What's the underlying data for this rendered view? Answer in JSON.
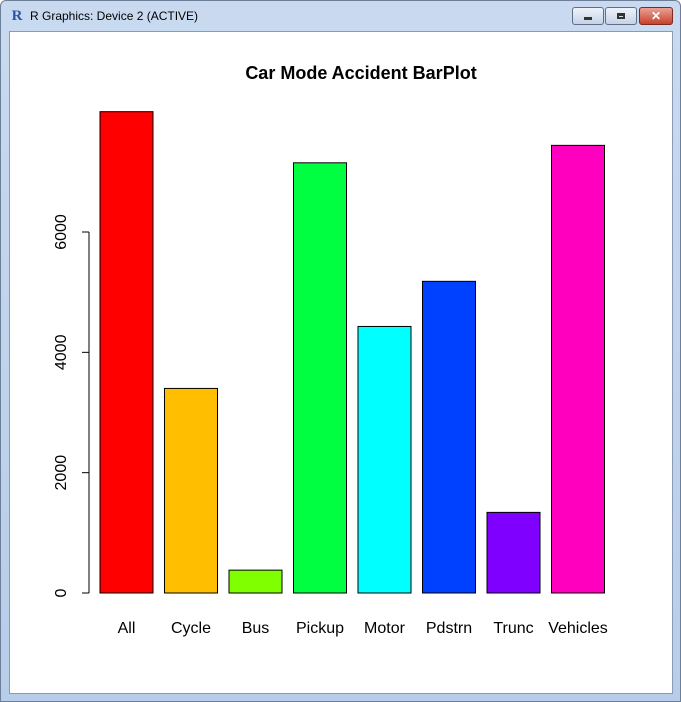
{
  "window": {
    "title": "R Graphics: Device 2 (ACTIVE)",
    "icon": "r-logo-icon"
  },
  "chart_data": {
    "type": "bar",
    "title": "Car Mode Accident BarPlot",
    "xlabel": "",
    "ylabel": "",
    "categories": [
      "All",
      "Cycle",
      "Bus",
      "Pickup",
      "Motor",
      "Pdstrn",
      "Trunc",
      "Vehicles"
    ],
    "values": [
      8000,
      3400,
      380,
      7150,
      4430,
      5180,
      1340,
      7440
    ],
    "colors": [
      "#FF0000",
      "#FFBF00",
      "#80FF00",
      "#00FF40",
      "#00FFFF",
      "#0040FF",
      "#8000FF",
      "#FF00BF"
    ],
    "y_ticks": [
      "0",
      "2000",
      "4000",
      "6000"
    ],
    "y_tick_values": [
      0,
      2000,
      4000,
      6000
    ],
    "ylim": [
      0,
      8000
    ],
    "grid": false,
    "legend": "none"
  }
}
